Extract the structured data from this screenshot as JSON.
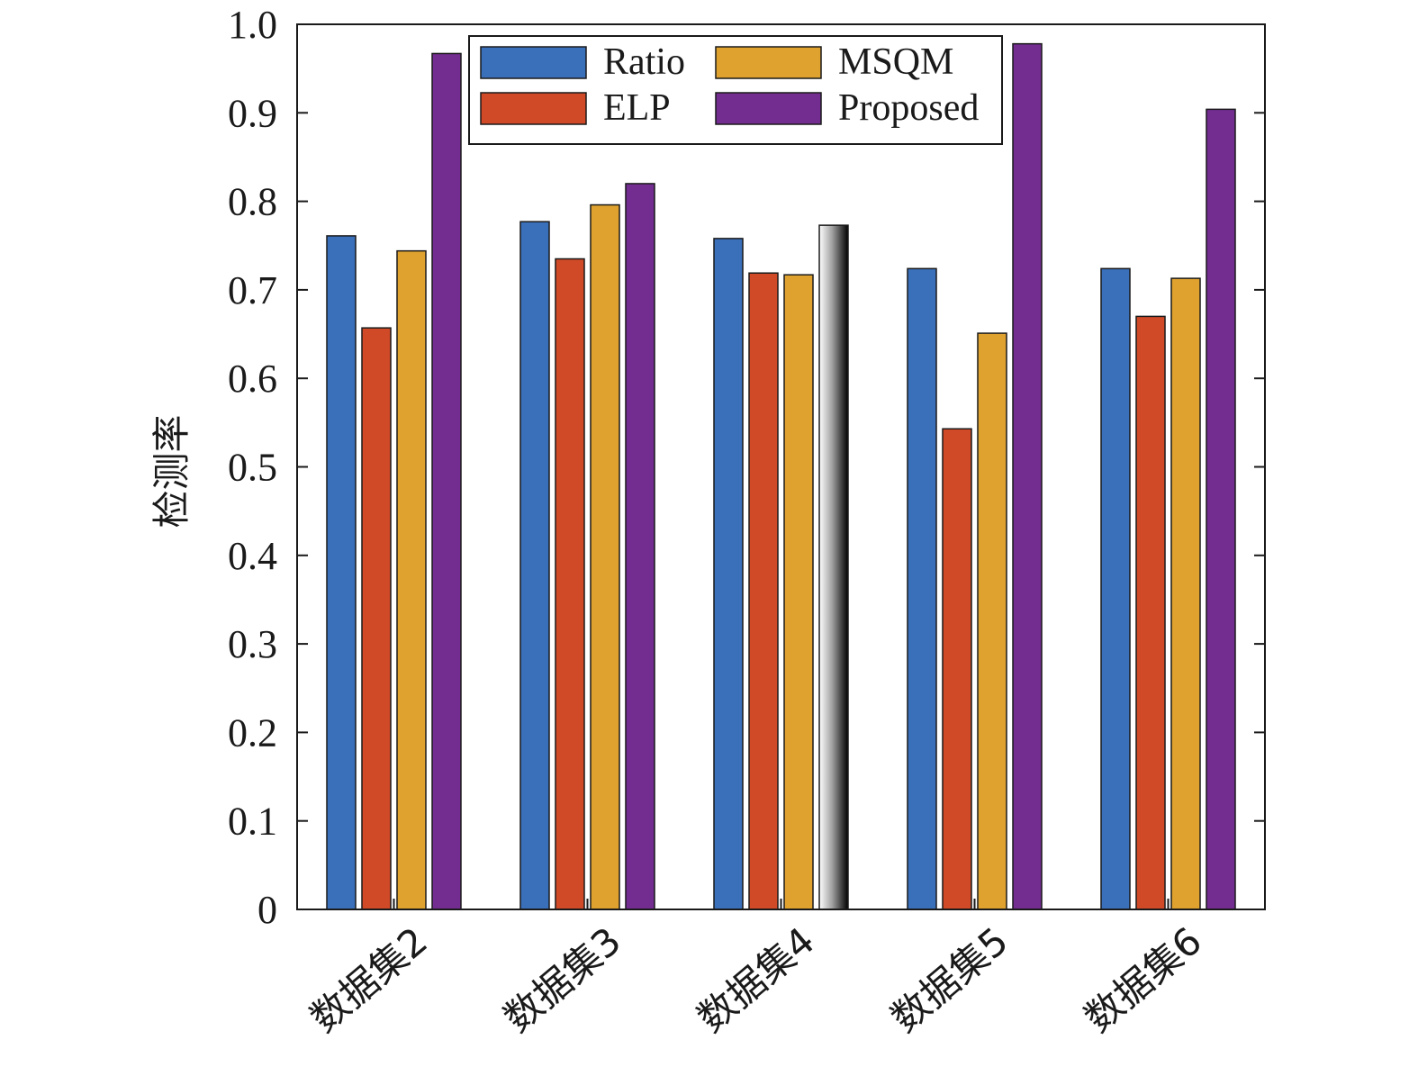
{
  "chart_data": {
    "type": "bar",
    "ylabel": "检测率",
    "xlabel": "",
    "ylim": [
      0,
      1.0
    ],
    "yticks": [
      "0",
      "0.1",
      "0.2",
      "0.3",
      "0.4",
      "0.5",
      "0.6",
      "0.7",
      "0.8",
      "0.9",
      "1.0"
    ],
    "categories": [
      "数据集2",
      "数据集3",
      "数据集4",
      "数据集5",
      "数据集6"
    ],
    "series": [
      {
        "name": "Ratio",
        "color": "#3a6fba",
        "values": [
          0.761,
          0.777,
          0.758,
          0.724,
          0.724
        ]
      },
      {
        "name": "ELP",
        "color": "#d04a27",
        "values": [
          0.657,
          0.735,
          0.719,
          0.543,
          0.67
        ]
      },
      {
        "name": "MSQM",
        "color": "#e0a22f",
        "values": [
          0.744,
          0.796,
          0.717,
          0.651,
          0.713
        ]
      },
      {
        "name": "Proposed",
        "color": "#732d91",
        "values": [
          0.967,
          0.82,
          0.773,
          0.978,
          0.904
        ]
      }
    ],
    "legend": "top-inside",
    "grid": false
  }
}
